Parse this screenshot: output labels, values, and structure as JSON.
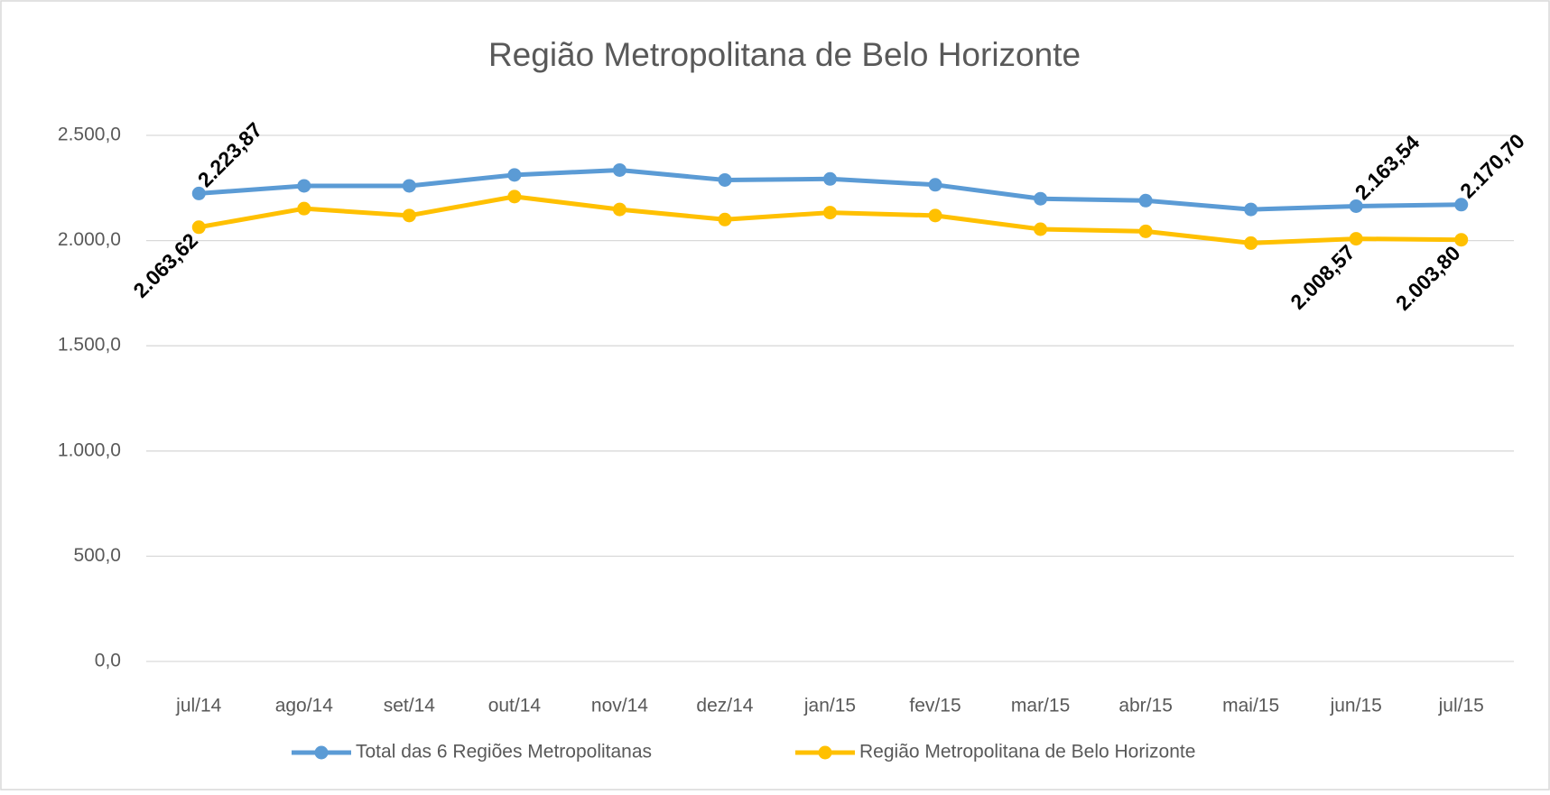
{
  "chart_data": {
    "type": "line",
    "title": "Região Metropolitana de Belo Horizonte",
    "categories": [
      "jul/14",
      "ago/14",
      "set/14",
      "out/14",
      "nov/14",
      "dez/14",
      "jan/15",
      "fev/15",
      "mar/15",
      "abr/15",
      "mai/15",
      "jun/15",
      "jul/15"
    ],
    "series": [
      {
        "name": "Total das 6 Regiões Metropolitanas",
        "color": "#5b9bd5",
        "values": [
          2223.87,
          2260,
          2260,
          2312,
          2335,
          2288,
          2293,
          2265,
          2199,
          2190,
          2148,
          2163.54,
          2170.7
        ],
        "value_labels": [
          "2.223,87",
          null,
          null,
          null,
          null,
          null,
          null,
          null,
          null,
          null,
          null,
          "2.163,54",
          "2.170,70"
        ]
      },
      {
        "name": "Região Metropolitana de Belo Horizonte",
        "color": "#ffc000",
        "values": [
          2063.62,
          2152,
          2119,
          2209,
          2148,
          2100,
          2133,
          2119,
          2054,
          2044,
          1988,
          2008.57,
          2003.8
        ],
        "value_labels": [
          "2.063,62",
          null,
          null,
          null,
          null,
          null,
          null,
          null,
          null,
          null,
          null,
          "2.008,57",
          "2.003,80"
        ]
      }
    ],
    "ylim": [
      0,
      2500
    ],
    "yticks": [
      {
        "value": 0,
        "label": "0,0"
      },
      {
        "value": 500,
        "label": "500,0"
      },
      {
        "value": 1000,
        "label": "1.000,0"
      },
      {
        "value": 1500,
        "label": "1.500,0"
      },
      {
        "value": 2000,
        "label": "2.000,0"
      },
      {
        "value": 2500,
        "label": "2.500,0"
      }
    ],
    "grid": true,
    "legend": "bottom"
  }
}
